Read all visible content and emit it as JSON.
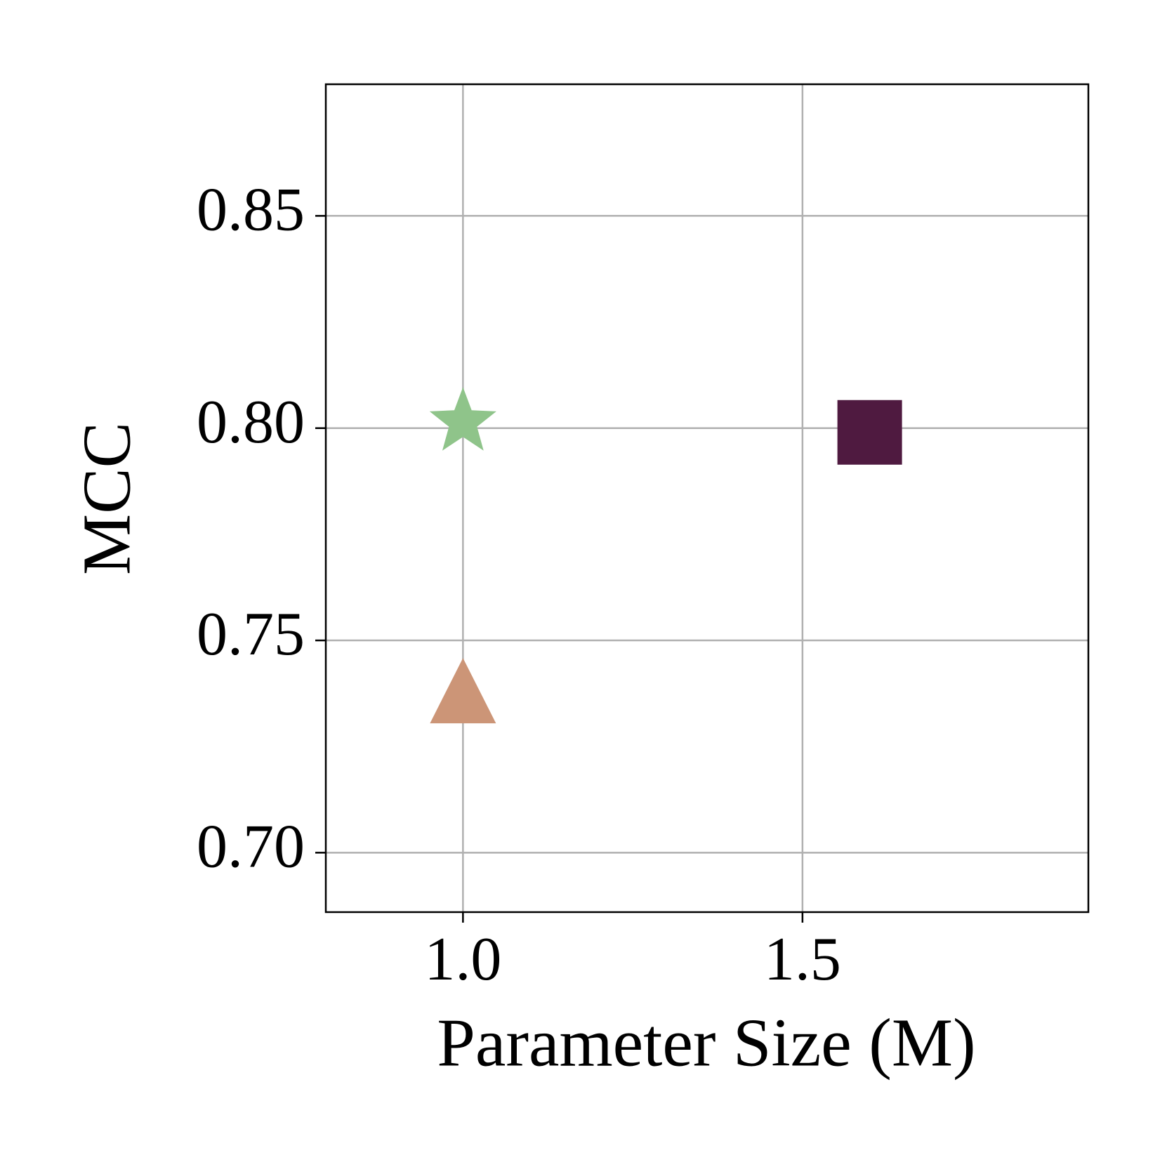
{
  "chart_data": {
    "type": "scatter",
    "xlabel": "Parameter Size (M)",
    "ylabel": "MCC",
    "xlim": [
      0.798,
      1.921
    ],
    "ylim": [
      0.686,
      0.881
    ],
    "xticks": [
      {
        "value": 1.0,
        "label": "1.0"
      },
      {
        "value": 1.5,
        "label": "1.5"
      }
    ],
    "yticks": [
      {
        "value": 0.7,
        "label": "0.70"
      },
      {
        "value": 0.75,
        "label": "0.75"
      },
      {
        "value": 0.8,
        "label": "0.80"
      },
      {
        "value": 0.85,
        "label": "0.85"
      }
    ],
    "grid": true,
    "series": [
      {
        "color": "#8fc48a",
        "marker": "star",
        "x": [
          1.0
        ],
        "values": [
          0.8014
        ]
      },
      {
        "color": "#cc9577",
        "marker": "triangle",
        "x": [
          1.0
        ],
        "values": [
          0.7356
        ]
      },
      {
        "color": "#4f1a40",
        "marker": "square",
        "x": [
          1.599
        ],
        "values": [
          0.799
        ]
      }
    ]
  }
}
